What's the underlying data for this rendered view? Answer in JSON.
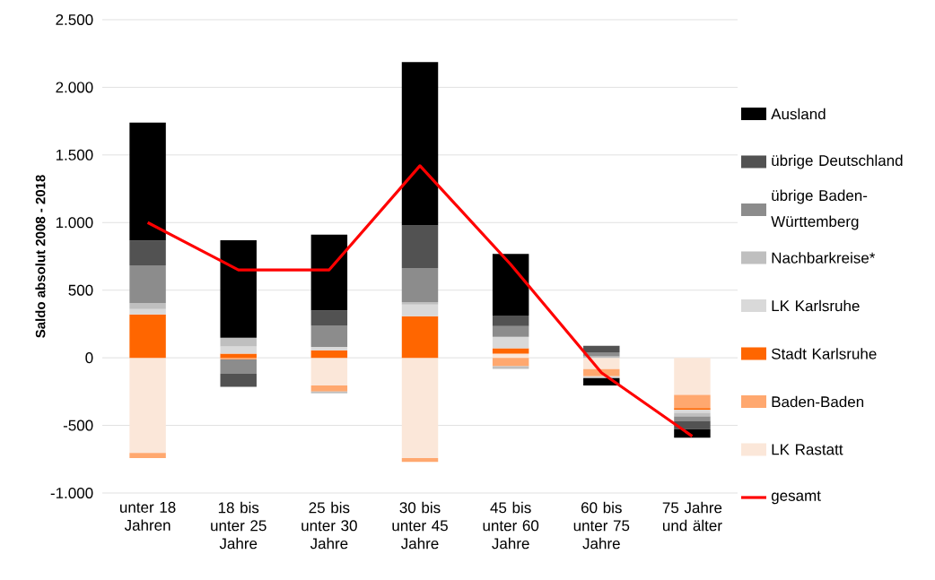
{
  "chart_data": {
    "type": "bar",
    "stacked": true,
    "ylabel": "Saldo absolut 2008 - 2018",
    "categories": [
      "unter 18 Jahren",
      "18 bis unter 25 Jahre",
      "25 bis unter 30 Jahre",
      "30 bis unter 45 Jahre",
      "45 bis unter 60 Jahre",
      "60 bis unter 75 Jahre",
      "75 Jahre und älter"
    ],
    "series": [
      {
        "name": "LK Rastatt",
        "color": "#fbe7d9",
        "values": [
          -704,
          null,
          -205,
          -741,
          31,
          -84,
          -275
        ]
      },
      {
        "name": "Baden-Baden",
        "color": "#ffa86f",
        "values": [
          -37,
          -12,
          -44,
          -29,
          -62,
          -53,
          -97
        ]
      },
      {
        "name": "Stadt Karlsruhe",
        "color": "#ff6600",
        "values": [
          320,
          31,
          55,
          308,
          40,
          0,
          -13
        ]
      },
      {
        "name": "LK Karlsruhe",
        "color": "#d9d9d9",
        "values": [
          40,
          53,
          26,
          86,
          84,
          -13,
          -22
        ]
      },
      {
        "name": "Nachbarkreise*",
        "color": "#bfbfbf",
        "values": [
          46,
          64,
          -13,
          18,
          -20,
          11,
          -26
        ]
      },
      {
        "name": "übrige Baden-Württemberg",
        "color": "#8c8c8c",
        "values": [
          277,
          -106,
          158,
          251,
          79,
          29,
          -33
        ]
      },
      {
        "name": "übrige Deutschland",
        "color": "#525252",
        "values": [
          185,
          -97,
          112,
          315,
          79,
          48,
          -62
        ]
      },
      {
        "name": "Ausland",
        "color": "#000000",
        "values": [
          871,
          722,
          560,
          1208,
          455,
          -55,
          -62
        ]
      },
      {
        "name": "gesamt",
        "type": "line",
        "color": "#ff0000",
        "values": [
          1000,
          650,
          650,
          1420,
          690,
          -110,
          -580
        ]
      }
    ],
    "ylim": [
      -1000,
      2500
    ],
    "yticks": [
      {
        "value": -1000,
        "label": "-1.000"
      },
      {
        "value": -500,
        "label": "-500"
      },
      0,
      500,
      {
        "value": 1000,
        "label": "1.000"
      },
      {
        "value": 1500,
        "label": "1.500"
      },
      {
        "value": 2000,
        "label": "2.000"
      },
      {
        "value": 2500,
        "label": "2.500"
      }
    ],
    "grid": "y",
    "legend": "right"
  }
}
